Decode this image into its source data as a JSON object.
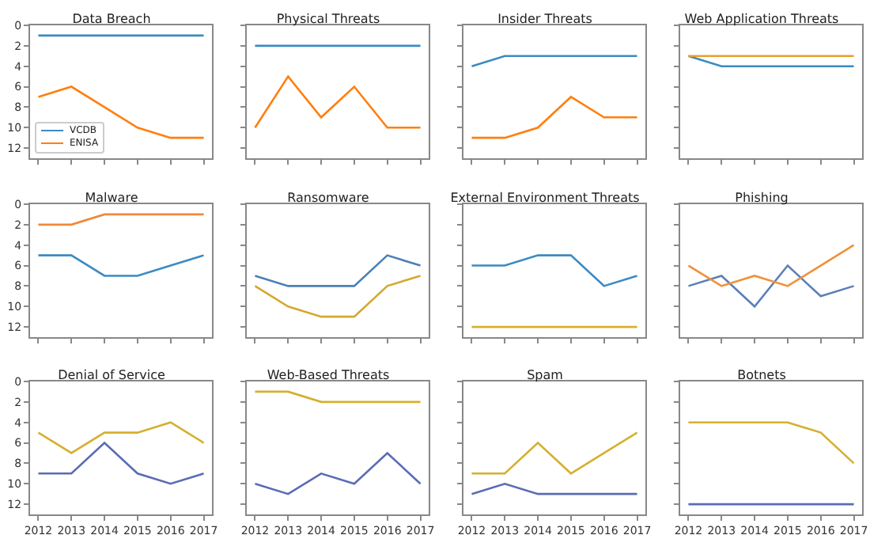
{
  "chart_data": [
    {
      "type": "line",
      "title": "Data Breach",
      "x": [
        2012,
        2013,
        2014,
        2015,
        2016,
        2017
      ],
      "xlim": [
        2011.75,
        2017.25
      ],
      "xticks": [
        2012,
        2013,
        2014,
        2015,
        2016,
        2017
      ],
      "ylim": [
        13,
        0
      ],
      "yticks": [
        0,
        2,
        4,
        6,
        8,
        10,
        12
      ],
      "tick_labels": "y",
      "legend": "bottom left",
      "series": [
        {
          "name": "VCDB",
          "color": "#3b8bc2",
          "values": [
            1,
            1,
            1,
            1,
            1,
            1
          ]
        },
        {
          "name": "ENISA",
          "color": "#ff7f0e",
          "values": [
            7,
            6,
            8,
            10,
            11,
            11
          ]
        }
      ]
    },
    {
      "type": "line",
      "title": "Physical Threats",
      "x": [
        2012,
        2013,
        2014,
        2015,
        2016,
        2017
      ],
      "xlim": [
        2011.75,
        2017.25
      ],
      "xticks": [
        2012,
        2013,
        2014,
        2015,
        2016,
        2017
      ],
      "ylim": [
        13,
        0
      ],
      "yticks": [
        0,
        2,
        4,
        6,
        8,
        10,
        12
      ],
      "tick_labels": false,
      "series": [
        {
          "color": "#3b8bc2",
          "values": [
            2,
            2,
            2,
            2,
            2,
            2
          ]
        },
        {
          "color": "#ff7f0e",
          "values": [
            10,
            5,
            9,
            6,
            10,
            10
          ]
        }
      ]
    },
    {
      "type": "line",
      "title": "Insider Threats",
      "x": [
        2012,
        2013,
        2014,
        2015,
        2016,
        2017
      ],
      "xlim": [
        2011.75,
        2017.25
      ],
      "xticks": [
        2012,
        2013,
        2014,
        2015,
        2016,
        2017
      ],
      "ylim": [
        13,
        0
      ],
      "yticks": [
        0,
        2,
        4,
        6,
        8,
        10,
        12
      ],
      "tick_labels": false,
      "series": [
        {
          "color": "#3b8bc2",
          "values": [
            4,
            3,
            3,
            3,
            3,
            3
          ]
        },
        {
          "color": "#ff7f0e",
          "values": [
            11,
            11,
            10,
            7,
            9,
            9
          ]
        }
      ]
    },
    {
      "type": "line",
      "title": "Web Application Threats",
      "x": [
        2012,
        2013,
        2014,
        2015,
        2016,
        2017
      ],
      "xlim": [
        2011.75,
        2017.25
      ],
      "xticks": [
        2012,
        2013,
        2014,
        2015,
        2016,
        2017
      ],
      "ylim": [
        13,
        0
      ],
      "yticks": [
        0,
        2,
        4,
        6,
        8,
        10,
        12
      ],
      "tick_labels": false,
      "series": [
        {
          "color": "#3b8bc2",
          "values": [
            3,
            4,
            4,
            4,
            4,
            4
          ]
        },
        {
          "color": "#e8a030",
          "values": [
            3,
            3,
            3,
            3,
            3,
            3
          ]
        }
      ]
    },
    {
      "type": "line",
      "title": "Malware",
      "x": [
        2012,
        2013,
        2014,
        2015,
        2016,
        2017
      ],
      "xlim": [
        2011.75,
        2017.25
      ],
      "xticks": [
        2012,
        2013,
        2014,
        2015,
        2016,
        2017
      ],
      "ylim": [
        13,
        0
      ],
      "yticks": [
        0,
        2,
        4,
        6,
        8,
        10,
        12
      ],
      "tick_labels": "y",
      "series": [
        {
          "color": "#3b8bc2",
          "values": [
            5,
            5,
            7,
            7,
            6,
            5
          ]
        },
        {
          "color": "#f0883a",
          "values": [
            2,
            2,
            1,
            1,
            1,
            1
          ]
        }
      ]
    },
    {
      "type": "line",
      "title": "Ransomware",
      "x": [
        2012,
        2013,
        2014,
        2015,
        2016,
        2017
      ],
      "xlim": [
        2011.75,
        2017.25
      ],
      "xticks": [
        2012,
        2013,
        2014,
        2015,
        2016,
        2017
      ],
      "ylim": [
        13,
        0
      ],
      "yticks": [
        0,
        2,
        4,
        6,
        8,
        10,
        12
      ],
      "tick_labels": false,
      "series": [
        {
          "color": "#4a80b8",
          "values": [
            7,
            8,
            8,
            8,
            5,
            6
          ]
        },
        {
          "color": "#d4a830",
          "values": [
            8,
            10,
            11,
            11,
            8,
            7
          ]
        }
      ]
    },
    {
      "type": "line",
      "title": "External Environment Threats",
      "x": [
        2012,
        2013,
        2014,
        2015,
        2016,
        2017
      ],
      "xlim": [
        2011.75,
        2017.25
      ],
      "xticks": [
        2012,
        2013,
        2014,
        2015,
        2016,
        2017
      ],
      "ylim": [
        13,
        0
      ],
      "yticks": [
        0,
        2,
        4,
        6,
        8,
        10,
        12
      ],
      "tick_labels": false,
      "series": [
        {
          "color": "#3b8bc2",
          "values": [
            6,
            6,
            5,
            5,
            8,
            7
          ]
        },
        {
          "color": "#d8b030",
          "values": [
            12,
            12,
            12,
            12,
            12,
            12
          ]
        }
      ]
    },
    {
      "type": "line",
      "title": "Phishing",
      "x": [
        2012,
        2013,
        2014,
        2015,
        2016,
        2017
      ],
      "xlim": [
        2011.75,
        2017.25
      ],
      "xticks": [
        2012,
        2013,
        2014,
        2015,
        2016,
        2017
      ],
      "ylim": [
        13,
        0
      ],
      "yticks": [
        0,
        2,
        4,
        6,
        8,
        10,
        12
      ],
      "tick_labels": false,
      "series": [
        {
          "color": "#5a80b8",
          "values": [
            8,
            7,
            10,
            6,
            9,
            8
          ]
        },
        {
          "color": "#f0903a",
          "values": [
            6,
            8,
            7,
            8,
            6,
            4
          ]
        }
      ]
    },
    {
      "type": "line",
      "title": "Denial of Service",
      "x": [
        2012,
        2013,
        2014,
        2015,
        2016,
        2017
      ],
      "xlim": [
        2011.75,
        2017.25
      ],
      "xticks": [
        2012,
        2013,
        2014,
        2015,
        2016,
        2017
      ],
      "ylim": [
        13,
        0
      ],
      "yticks": [
        0,
        2,
        4,
        6,
        8,
        10,
        12
      ],
      "series": [
        {
          "color": "#5a6cb4",
          "values": [
            9,
            9,
            6,
            9,
            10,
            9
          ]
        },
        {
          "color": "#d4b030",
          "values": [
            5,
            7,
            5,
            5,
            4,
            6
          ]
        }
      ]
    },
    {
      "type": "line",
      "title": "Web-Based Threats",
      "x": [
        2012,
        2013,
        2014,
        2015,
        2016,
        2017
      ],
      "xlim": [
        2011.75,
        2017.25
      ],
      "xticks": [
        2012,
        2013,
        2014,
        2015,
        2016,
        2017
      ],
      "ylim": [
        13,
        0
      ],
      "yticks": [
        0,
        2,
        4,
        6,
        8,
        10,
        12
      ],
      "tick_labels": "x",
      "series": [
        {
          "color": "#5a6cb4",
          "values": [
            10,
            11,
            9,
            10,
            7,
            10
          ]
        },
        {
          "color": "#d4b030",
          "values": [
            1,
            1,
            2,
            2,
            2,
            2
          ]
        }
      ]
    },
    {
      "type": "line",
      "title": "Spam",
      "x": [
        2012,
        2013,
        2014,
        2015,
        2016,
        2017
      ],
      "xlim": [
        2011.75,
        2017.25
      ],
      "xticks": [
        2012,
        2013,
        2014,
        2015,
        2016,
        2017
      ],
      "ylim": [
        13,
        0
      ],
      "yticks": [
        0,
        2,
        4,
        6,
        8,
        10,
        12
      ],
      "tick_labels": "x",
      "series": [
        {
          "color": "#5a6cb4",
          "values": [
            11,
            10,
            11,
            11,
            11,
            11
          ]
        },
        {
          "color": "#d4b030",
          "values": [
            9,
            9,
            6,
            9,
            7,
            5
          ]
        }
      ]
    },
    {
      "type": "line",
      "title": "Botnets",
      "x": [
        2012,
        2013,
        2014,
        2015,
        2016,
        2017
      ],
      "xlim": [
        2011.75,
        2017.25
      ],
      "xticks": [
        2012,
        2013,
        2014,
        2015,
        2016,
        2017
      ],
      "ylim": [
        13,
        0
      ],
      "yticks": [
        0,
        2,
        4,
        6,
        8,
        10,
        12
      ],
      "tick_labels": "x",
      "series": [
        {
          "color": "#5a6cb4",
          "values": [
            12,
            12,
            12,
            12,
            12,
            12
          ]
        },
        {
          "color": "#d4b030",
          "values": [
            4,
            4,
            4,
            4,
            5,
            8
          ]
        }
      ]
    }
  ]
}
